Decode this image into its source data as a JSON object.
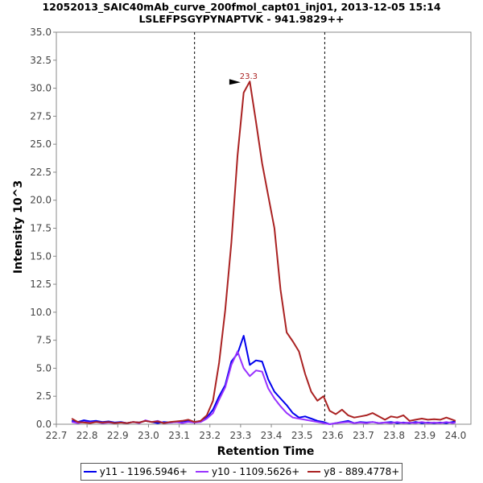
{
  "chart_data": {
    "type": "line",
    "title": "12052013_SAIC40mAb_curve_200fmol_capt01_inj01, 2013-12-05 15:14",
    "subtitle": "LSLEFPSGYPYNAPTVK - 941.9829++",
    "xlabel": "Retention Time",
    "ylabel": "Intensity 10^3",
    "xlim": [
      22.7,
      24.05
    ],
    "ylim": [
      0,
      35
    ],
    "xticks": [
      "22.7",
      "22.8",
      "22.9",
      "23.0",
      "23.1",
      "23.2",
      "23.3",
      "23.4",
      "23.5",
      "23.6",
      "23.7",
      "23.8",
      "23.9",
      "24.0"
    ],
    "yticks": [
      "0.0",
      "2.5",
      "5.0",
      "7.5",
      "10.0",
      "12.5",
      "15.0",
      "17.5",
      "20.0",
      "22.5",
      "25.0",
      "27.5",
      "30.0",
      "32.5",
      "35.0"
    ],
    "vlines": [
      23.15,
      23.574
    ],
    "peak_annotation": {
      "x": 23.3,
      "y": 30.6,
      "label": "23.3"
    },
    "legend_position": "bottom",
    "grid": false,
    "series": [
      {
        "name": "y11 - 1196.5946+",
        "color": "#0000ee",
        "x": [
          22.75,
          22.77,
          22.79,
          22.81,
          22.83,
          22.85,
          22.87,
          22.89,
          22.91,
          22.93,
          22.95,
          22.97,
          22.99,
          23.01,
          23.03,
          23.05,
          23.07,
          23.09,
          23.11,
          23.13,
          23.15,
          23.17,
          23.19,
          23.21,
          23.23,
          23.25,
          23.27,
          23.29,
          23.31,
          23.33,
          23.35,
          23.37,
          23.39,
          23.41,
          23.43,
          23.45,
          23.47,
          23.49,
          23.51,
          23.53,
          23.55,
          23.57,
          23.59,
          23.61,
          23.63,
          23.65,
          23.67,
          23.69,
          23.71,
          23.73,
          23.75,
          23.77,
          23.79,
          23.81,
          23.83,
          23.85,
          23.87,
          23.89,
          23.91,
          23.93,
          23.95,
          23.97,
          23.99,
          24.0
        ],
        "values": [
          0.3,
          0.2,
          0.35,
          0.25,
          0.3,
          0.2,
          0.25,
          0.15,
          0.2,
          0.1,
          0.2,
          0.15,
          0.3,
          0.2,
          0.1,
          0.2,
          0.15,
          0.2,
          0.25,
          0.3,
          0.2,
          0.3,
          0.6,
          1.3,
          2.5,
          3.5,
          5.6,
          6.3,
          7.9,
          5.3,
          5.7,
          5.6,
          4.0,
          2.9,
          2.3,
          1.7,
          1.0,
          0.6,
          0.7,
          0.5,
          0.3,
          0.2,
          0.0,
          0.1,
          0.2,
          0.3,
          0.1,
          0.2,
          0.15,
          0.2,
          0.1,
          0.15,
          0.2,
          0.1,
          0.15,
          0.1,
          0.2,
          0.1,
          0.15,
          0.1,
          0.15,
          0.1,
          0.2,
          0.25
        ]
      },
      {
        "name": "y10 - 1109.5626+",
        "color": "#9933ff",
        "x": [
          22.75,
          22.77,
          22.79,
          22.81,
          22.83,
          22.85,
          22.87,
          22.89,
          22.91,
          22.93,
          22.95,
          22.97,
          22.99,
          23.01,
          23.03,
          23.05,
          23.07,
          23.09,
          23.11,
          23.13,
          23.15,
          23.17,
          23.19,
          23.21,
          23.23,
          23.25,
          23.27,
          23.29,
          23.31,
          23.33,
          23.35,
          23.37,
          23.39,
          23.41,
          23.43,
          23.45,
          23.47,
          23.49,
          23.51,
          23.53,
          23.55,
          23.57,
          23.59,
          23.61,
          23.63,
          23.65,
          23.67,
          23.69,
          23.71,
          23.73,
          23.75,
          23.77,
          23.79,
          23.81,
          23.83,
          23.85,
          23.87,
          23.89,
          23.91,
          23.93,
          23.95,
          23.97,
          23.99,
          24.0
        ],
        "values": [
          0.2,
          0.1,
          0.2,
          0.15,
          0.2,
          0.1,
          0.15,
          0.1,
          0.15,
          0.1,
          0.2,
          0.1,
          0.35,
          0.2,
          0.3,
          0.1,
          0.15,
          0.2,
          0.1,
          0.2,
          0.15,
          0.2,
          0.5,
          1.0,
          2.2,
          3.3,
          5.3,
          6.5,
          5.0,
          4.3,
          4.8,
          4.7,
          3.2,
          2.3,
          1.6,
          1.0,
          0.6,
          0.5,
          0.4,
          0.3,
          0.2,
          0.1,
          0.0,
          0.1,
          0.15,
          0.2,
          0.1,
          0.15,
          0.1,
          0.2,
          0.1,
          0.15,
          0.1,
          0.2,
          0.1,
          0.15,
          0.1,
          0.2,
          0.1,
          0.15,
          0.1,
          0.2,
          0.1,
          0.15
        ]
      },
      {
        "name": "y8 - 889.4778+",
        "color": "#aa2222",
        "x": [
          22.75,
          22.77,
          22.79,
          22.81,
          22.83,
          22.85,
          22.87,
          22.89,
          22.91,
          22.93,
          22.95,
          22.97,
          22.99,
          23.01,
          23.03,
          23.05,
          23.07,
          23.09,
          23.11,
          23.13,
          23.15,
          23.17,
          23.19,
          23.21,
          23.23,
          23.25,
          23.27,
          23.29,
          23.31,
          23.33,
          23.35,
          23.37,
          23.39,
          23.41,
          23.43,
          23.45,
          23.47,
          23.49,
          23.51,
          23.53,
          23.55,
          23.57,
          23.59,
          23.61,
          23.63,
          23.65,
          23.67,
          23.69,
          23.71,
          23.73,
          23.75,
          23.77,
          23.79,
          23.81,
          23.83,
          23.85,
          23.87,
          23.89,
          23.91,
          23.93,
          23.95,
          23.97,
          23.99,
          24.0
        ],
        "values": [
          0.5,
          0.2,
          0.15,
          0.1,
          0.2,
          0.15,
          0.2,
          0.1,
          0.15,
          0.1,
          0.2,
          0.15,
          0.3,
          0.2,
          0.25,
          0.1,
          0.2,
          0.25,
          0.3,
          0.4,
          0.2,
          0.3,
          0.8,
          2.1,
          5.5,
          10.2,
          16.2,
          24.0,
          29.6,
          30.6,
          27.0,
          23.3,
          20.4,
          17.5,
          12.0,
          8.2,
          7.4,
          6.5,
          4.5,
          2.9,
          2.1,
          2.5,
          1.2,
          0.9,
          1.3,
          0.8,
          0.6,
          0.7,
          0.8,
          1.0,
          0.7,
          0.4,
          0.7,
          0.6,
          0.8,
          0.3,
          0.4,
          0.5,
          0.4,
          0.45,
          0.4,
          0.6,
          0.4,
          0.3
        ]
      }
    ]
  }
}
